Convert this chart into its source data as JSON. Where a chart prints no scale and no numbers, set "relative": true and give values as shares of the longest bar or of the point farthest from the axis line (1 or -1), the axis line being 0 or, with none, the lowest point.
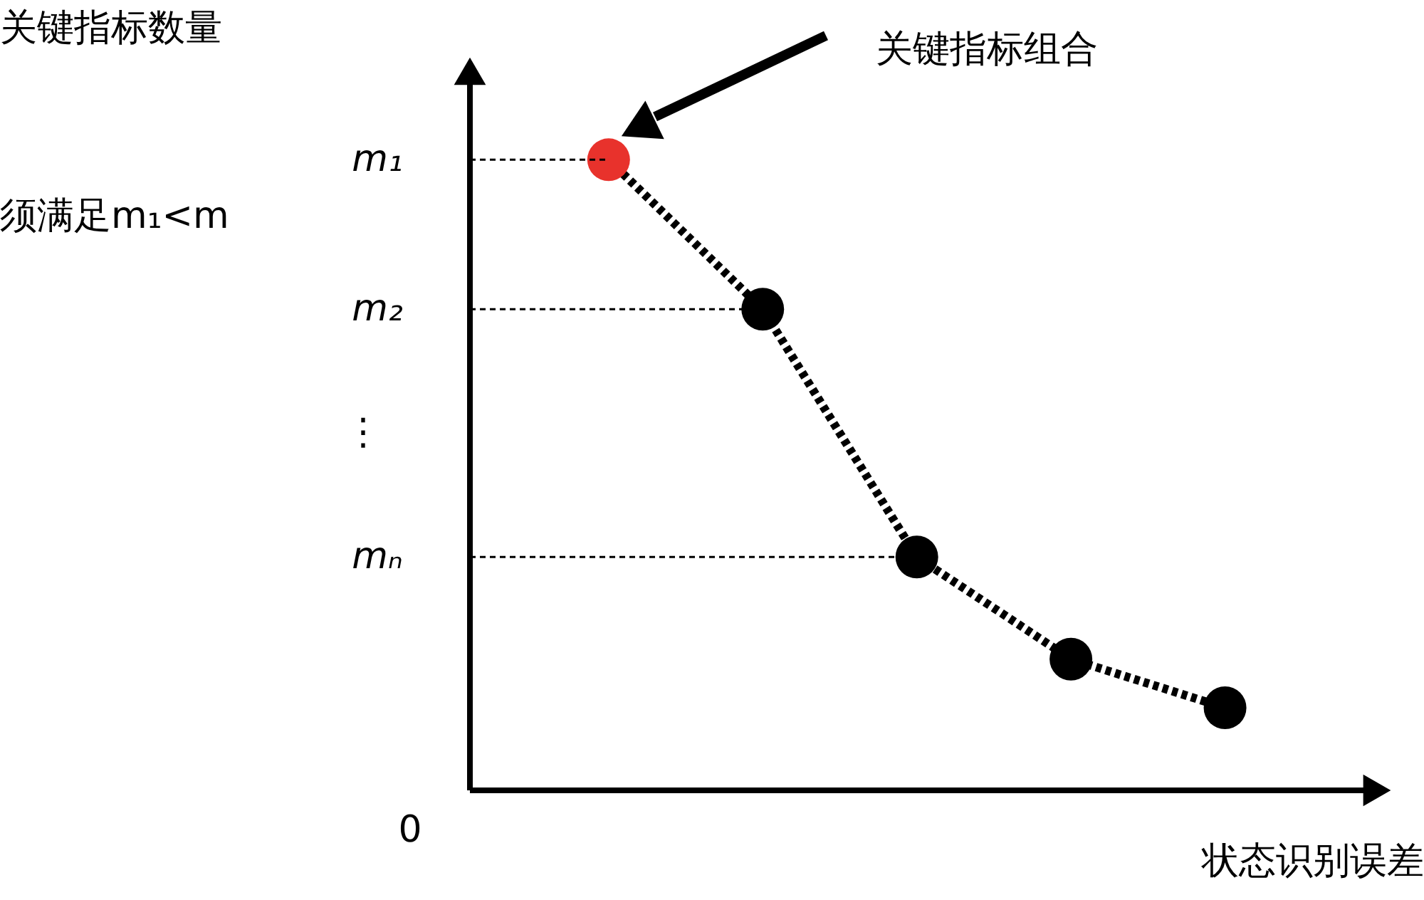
{
  "chart_data": {
    "type": "line",
    "relative": true,
    "xlabel": "状态识别误差",
    "categories": [
      null,
      null,
      null,
      null,
      null
    ],
    "series": [
      {
        "color": "#000000",
        "colors": [
          "#e8322c",
          "#000000",
          "#000000",
          "#000000",
          "#000000"
        ],
        "values": [
          1,
          0.763,
          0.37,
          0.208,
          0.131
        ]
      }
    ],
    "marker": "circle",
    "line_style": "dotted",
    "legend": false,
    "grid": false,
    "ref_lines": [
      {
        "axis": "y",
        "value": 1,
        "label": "m₁",
        "line_style": "dotted"
      },
      {
        "axis": "y",
        "value": 0.763,
        "label": "m₂",
        "line_style": "dotted"
      },
      {
        "axis": "y",
        "value": 0.37,
        "label": "mₙ",
        "line_style": "dotted"
      }
    ],
    "annotations": [
      "关键指标数量",
      "⋮",
      "须满足m₁<m",
      "0",
      "关键指标组合"
    ]
  }
}
